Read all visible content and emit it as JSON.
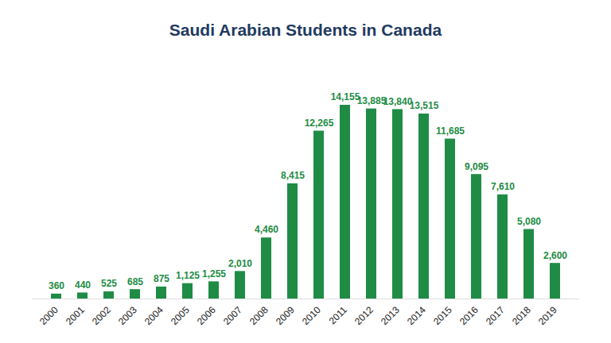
{
  "chart_data": {
    "type": "bar",
    "title": "Saudi Arabian Students in Canada",
    "categories": [
      "2000",
      "2001",
      "2002",
      "2003",
      "2004",
      "2005",
      "2006",
      "2007",
      "2008",
      "2009",
      "2010",
      "2011",
      "2012",
      "2013",
      "2014",
      "2015",
      "2016",
      "2017",
      "2018",
      "2019"
    ],
    "values": [
      360,
      440,
      525,
      685,
      875,
      1125,
      1255,
      2010,
      4460,
      8415,
      12265,
      14155,
      13885,
      13840,
      13515,
      11685,
      9095,
      7610,
      5080,
      2600
    ],
    "value_labels": [
      "360",
      "440",
      "525",
      "685",
      "875",
      "1,125",
      "1,255",
      "2,010",
      "4,460",
      "8,415",
      "12,265",
      "14,155",
      "13,885",
      "13,840",
      "13,515",
      "11,685",
      "9,095",
      "7,610",
      "5,080",
      "2,600"
    ],
    "color": "#1e8c45",
    "ylim": [
      0,
      14155
    ],
    "data_labels": true,
    "tick_labels": "x",
    "grid": false
  }
}
